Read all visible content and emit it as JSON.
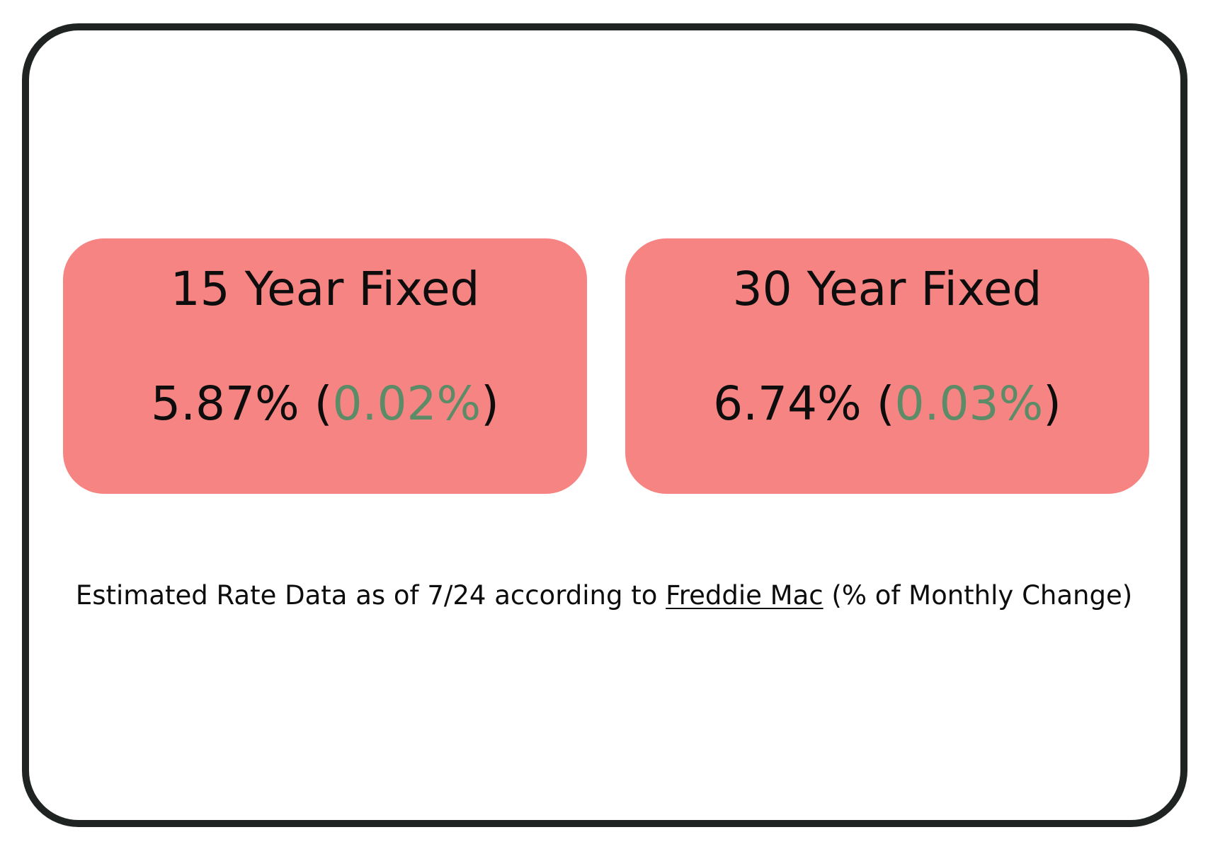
{
  "cards": [
    {
      "title": "15 Year Fixed",
      "rate": "5.87%",
      "change": "0.02%"
    },
    {
      "title": "30 Year Fixed",
      "rate": "6.74%",
      "change": "0.03%"
    }
  ],
  "footer": {
    "prefix": "Estimated Rate Data as of 7/24 according to",
    "link_text": "Freddie Mac",
    "suffix": "(% of Monthly Change)"
  },
  "colors": {
    "card_background": "#f68482",
    "change_text": "#5b8b67",
    "frame_border": "#1f2422"
  }
}
